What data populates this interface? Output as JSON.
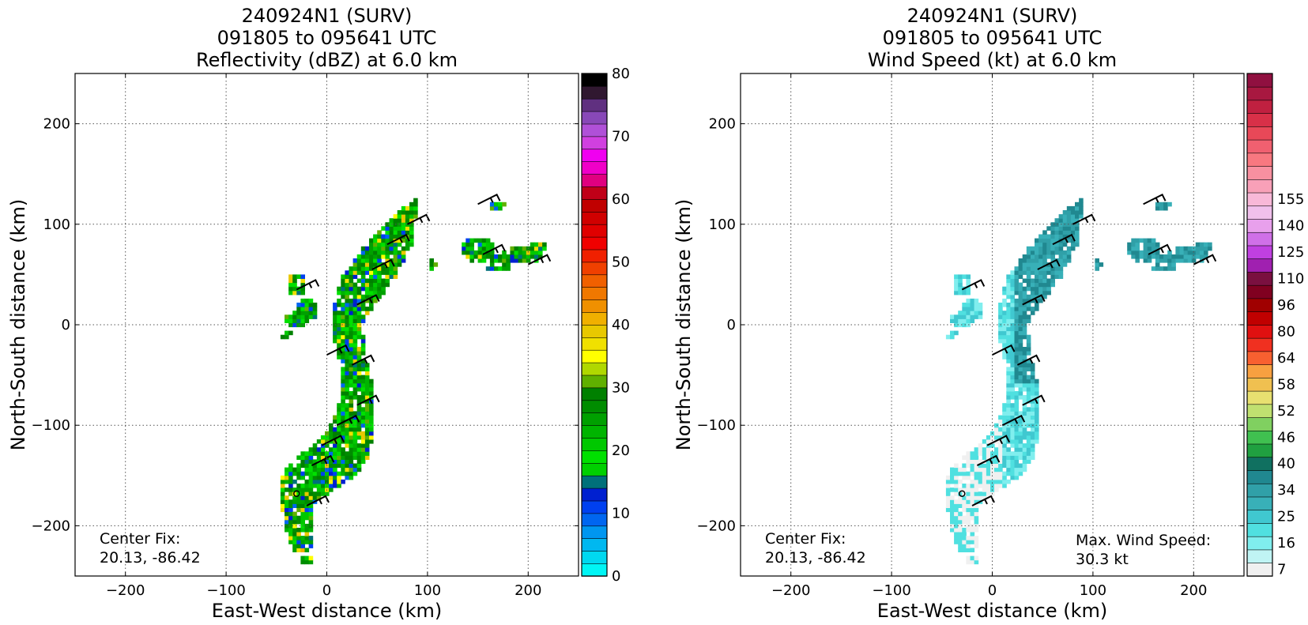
{
  "chart_data": [
    {
      "type": "heatmap",
      "title_lines": [
        "240924N1 (SURV)",
        "091805 to 095641 UTC",
        "Reflectivity (dBZ) at 6.0 km"
      ],
      "xlabel": "East-West distance (km)",
      "ylabel": "North-South distance (km)",
      "xlim": [
        -250,
        250
      ],
      "ylim": [
        -250,
        250
      ],
      "xticks": [
        -200,
        -100,
        0,
        100,
        200
      ],
      "yticks": [
        -200,
        -100,
        0,
        100,
        200
      ],
      "xtick_labels": [
        "−200",
        "−100",
        "0",
        "100",
        "200"
      ],
      "ytick_labels": [
        "−200",
        "−100",
        "0",
        "100",
        "200"
      ],
      "grid": true,
      "annotations": {
        "center_fix_label": "Center Fix:",
        "center_fix_value": "20.13, -86.42"
      },
      "colorbar": {
        "min": 0,
        "max": 80,
        "tick_values": [
          0,
          10,
          20,
          30,
          40,
          50,
          60,
          70,
          80
        ],
        "tick_labels": [
          "0",
          "10",
          "20",
          "30",
          "40",
          "50",
          "60",
          "70",
          "80"
        ],
        "colors": [
          "#00f5f5",
          "#00d8f0",
          "#00b8f0",
          "#0096f0",
          "#0066f0",
          "#0040f0",
          "#0020d0",
          "#00707a",
          "#00d000",
          "#00e000",
          "#00c800",
          "#00b400",
          "#00a000",
          "#008c00",
          "#008000",
          "#60b000",
          "#b0d800",
          "#ffff00",
          "#f0e000",
          "#e8c800",
          "#f0b000",
          "#f09000",
          "#f07800",
          "#f06000",
          "#f04000",
          "#f02000",
          "#f00000",
          "#e00000",
          "#d00000",
          "#c00000",
          "#c00018",
          "#e00080",
          "#f000c8",
          "#f000f0",
          "#d040e0",
          "#b050d8",
          "#8848b8",
          "#603080",
          "#301830",
          "#000000"
        ]
      }
    },
    {
      "type": "heatmap",
      "title_lines": [
        "240924N1 (SURV)",
        "091805 to 095641 UTC",
        "Wind Speed (kt) at 6.0 km"
      ],
      "xlabel": "East-West distance (km)",
      "ylabel": "North-South distance (km)",
      "xlim": [
        -250,
        250
      ],
      "ylim": [
        -250,
        250
      ],
      "xticks": [
        -200,
        -100,
        0,
        100,
        200
      ],
      "yticks": [
        -200,
        -100,
        0,
        100,
        200
      ],
      "xtick_labels": [
        "−200",
        "−100",
        "0",
        "100",
        "200"
      ],
      "ytick_labels": [
        "−200",
        "−100",
        "0",
        "100",
        "200"
      ],
      "grid": true,
      "annotations": {
        "center_fix_label": "Center Fix:",
        "center_fix_value": "20.13, -86.42",
        "max_wind_label": "Max. Wind Speed:",
        "max_wind_value": "30.3 kt"
      },
      "colorbar": {
        "tick_labels": [
          "7",
          "16",
          "25",
          "34",
          "40",
          "46",
          "52",
          "58",
          "64",
          "80",
          "96",
          "110",
          "125",
          "140",
          "155"
        ],
        "tick_bins": [
          0,
          2,
          4,
          6,
          8,
          10,
          12,
          14,
          16,
          18,
          20,
          22,
          24,
          26,
          28
        ],
        "colors": [
          "#f0f0f0",
          "#c0f4f4",
          "#80eeee",
          "#50e0e0",
          "#40c8d0",
          "#38b0b8",
          "#30a0a8",
          "#208890",
          "#107060",
          "#20a040",
          "#40c050",
          "#80d060",
          "#c0e070",
          "#e8e070",
          "#f0c050",
          "#f8a040",
          "#f86030",
          "#f03020",
          "#e01010",
          "#c00000",
          "#a00000",
          "#800020",
          "#7a1040",
          "#a020b0",
          "#c040e0",
          "#d070e8",
          "#e8a0ec",
          "#f0c0ec",
          "#f8b8d8",
          "#f8a0b8",
          "#f890a0",
          "#f87880",
          "#f06070",
          "#e84858",
          "#d83048",
          "#c02040",
          "#a81840",
          "#901040"
        ]
      }
    }
  ]
}
